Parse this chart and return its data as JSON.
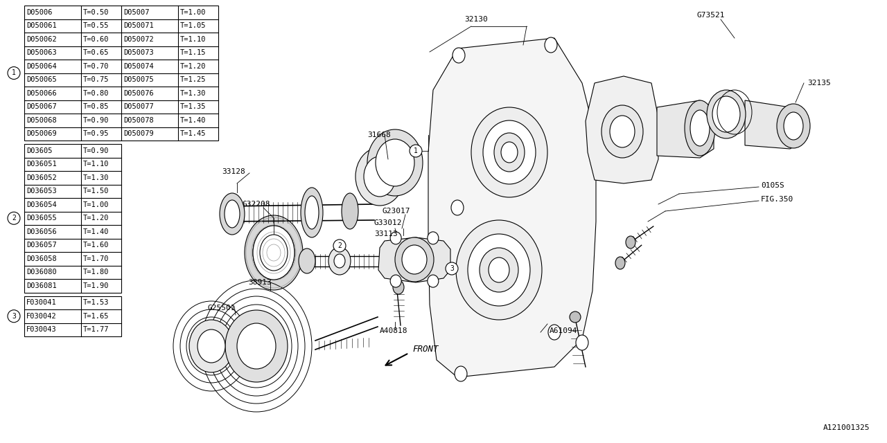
{
  "bg_color": "#ffffff",
  "table1_rows": [
    [
      "D05006",
      "T=0.50",
      "D05007",
      "T=1.00"
    ],
    [
      "D050061",
      "T=0.55",
      "D050071",
      "T=1.05"
    ],
    [
      "D050062",
      "T=0.60",
      "D050072",
      "T=1.10"
    ],
    [
      "D050063",
      "T=0.65",
      "D050073",
      "T=1.15"
    ],
    [
      "D050064",
      "T=0.70",
      "D050074",
      "T=1.20"
    ],
    [
      "D050065",
      "T=0.75",
      "D050075",
      "T=1.25"
    ],
    [
      "D050066",
      "T=0.80",
      "D050076",
      "T=1.30"
    ],
    [
      "D050067",
      "T=0.85",
      "D050077",
      "T=1.35"
    ],
    [
      "D050068",
      "T=0.90",
      "D050078",
      "T=1.40"
    ],
    [
      "D050069",
      "T=0.95",
      "D050079",
      "T=1.45"
    ]
  ],
  "table2_rows": [
    [
      "D03605",
      "T=0.90"
    ],
    [
      "D036051",
      "T=1.10"
    ],
    [
      "D036052",
      "T=1.30"
    ],
    [
      "D036053",
      "T=1.50"
    ],
    [
      "D036054",
      "T=1.00"
    ],
    [
      "D036055",
      "T=1.20"
    ],
    [
      "D036056",
      "T=1.40"
    ],
    [
      "D036057",
      "T=1.60"
    ],
    [
      "D036058",
      "T=1.70"
    ],
    [
      "D036080",
      "T=1.80"
    ],
    [
      "D036081",
      "T=1.90"
    ]
  ],
  "table3_rows": [
    [
      "F030041",
      "T=1.53"
    ],
    [
      "F030042",
      "T=1.65"
    ],
    [
      "F030043",
      "T=1.77"
    ]
  ]
}
